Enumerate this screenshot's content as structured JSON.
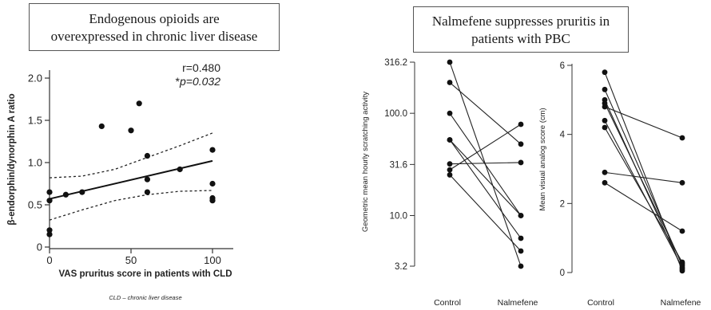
{
  "titles": {
    "left_line1": "Endogenous opioids are",
    "left_line2": "overexpressed in chronic liver disease",
    "right_line1": "Nalmefene suppresses pruritis in",
    "right_line2": "patients with PBC"
  },
  "chart_data": [
    {
      "type": "scatter",
      "xlabel": "VAS pruritus score in patients with CLD",
      "ylabel": "β-endorphin/dynorphin A ratio",
      "x_ticks": [
        "0",
        "50",
        "100"
      ],
      "y_ticks": [
        "0",
        "0.5",
        "1.0",
        "1.5",
        "2.0"
      ],
      "xlim": [
        0,
        100
      ],
      "ylim": [
        0,
        2.0
      ],
      "stats": {
        "r": "r=0.480",
        "p_prefix": "*",
        "p_text": "p=0.032"
      },
      "footnote": "CLD – chronic liver disease",
      "points": [
        {
          "x": 0,
          "y": 0.15
        },
        {
          "x": 0,
          "y": 0.2
        },
        {
          "x": 0,
          "y": 0.55
        },
        {
          "x": 0,
          "y": 0.65
        },
        {
          "x": 10,
          "y": 0.62
        },
        {
          "x": 20,
          "y": 0.65
        },
        {
          "x": 32,
          "y": 1.43
        },
        {
          "x": 50,
          "y": 1.38
        },
        {
          "x": 55,
          "y": 1.7
        },
        {
          "x": 60,
          "y": 1.08
        },
        {
          "x": 60,
          "y": 0.8
        },
        {
          "x": 60,
          "y": 0.65
        },
        {
          "x": 80,
          "y": 0.92
        },
        {
          "x": 100,
          "y": 1.15
        },
        {
          "x": 100,
          "y": 0.75
        },
        {
          "x": 100,
          "y": 0.58
        },
        {
          "x": 100,
          "y": 0.55
        }
      ],
      "regression": {
        "x0": 0,
        "y0": 0.57,
        "x1": 100,
        "y1": 1.02
      },
      "ci_upper": [
        [
          0,
          0.82
        ],
        [
          20,
          0.84
        ],
        [
          40,
          0.92
        ],
        [
          60,
          1.06
        ],
        [
          80,
          1.2
        ],
        [
          100,
          1.35
        ]
      ],
      "ci_lower": [
        [
          0,
          0.32
        ],
        [
          20,
          0.44
        ],
        [
          40,
          0.55
        ],
        [
          60,
          0.62
        ],
        [
          80,
          0.66
        ],
        [
          100,
          0.67
        ]
      ]
    },
    {
      "type": "line",
      "scale": "log",
      "ylabel": "Geometric mean hourly scratching activity",
      "y_ticks": [
        "3.2",
        "10.0",
        "31.6",
        "100.0",
        "316.2"
      ],
      "y_tick_values": [
        3.2,
        10.0,
        31.6,
        100.0,
        316.2
      ],
      "ylim": [
        3.2,
        316.2
      ],
      "categories": [
        "Control",
        "Nalmefene"
      ],
      "pairs": [
        [
          316.2,
          3.2
        ],
        [
          200,
          50
        ],
        [
          100,
          10
        ],
        [
          55,
          10
        ],
        [
          55,
          6
        ],
        [
          32,
          33
        ],
        [
          28,
          78
        ],
        [
          25,
          4.5
        ]
      ]
    },
    {
      "type": "line",
      "ylabel": "Mean visual analog score (cm)",
      "y_ticks": [
        "0",
        "2",
        "4",
        "6"
      ],
      "ylim": [
        0,
        6
      ],
      "categories": [
        "Control",
        "Nalmefene"
      ],
      "pairs": [
        [
          5.8,
          0.05
        ],
        [
          5.3,
          0.2
        ],
        [
          5.0,
          0.1
        ],
        [
          4.9,
          0.25
        ],
        [
          4.8,
          3.9
        ],
        [
          4.4,
          0.15
        ],
        [
          4.2,
          0.3
        ],
        [
          2.9,
          2.6
        ],
        [
          2.6,
          1.2
        ]
      ]
    }
  ]
}
